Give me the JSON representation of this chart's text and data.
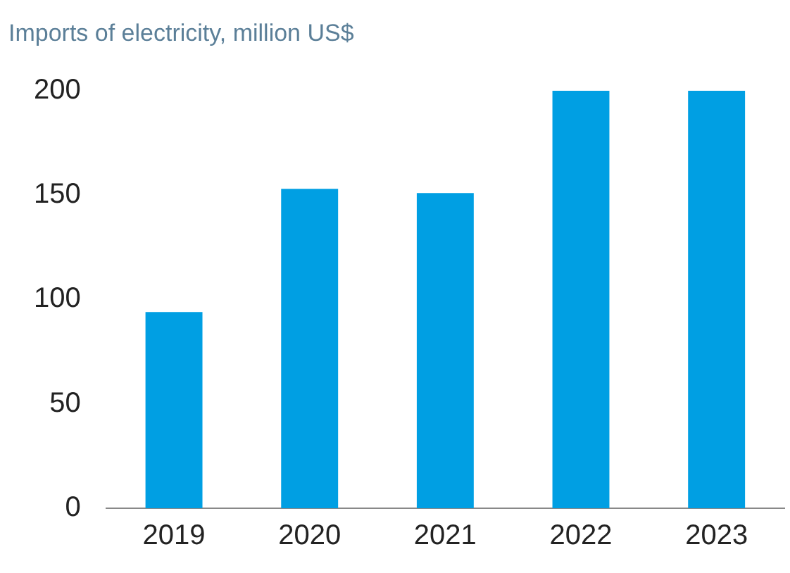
{
  "chart_data": {
    "type": "bar",
    "title": "Imports of electricity, million US$",
    "categories": [
      "2019",
      "2020",
      "2021",
      "2022",
      "2023"
    ],
    "values": [
      94,
      153,
      151,
      200,
      200
    ],
    "color": "#009fe3",
    "ylim": [
      0,
      200
    ],
    "yticks": [
      0,
      50,
      100,
      150,
      200
    ],
    "grid": false
  }
}
